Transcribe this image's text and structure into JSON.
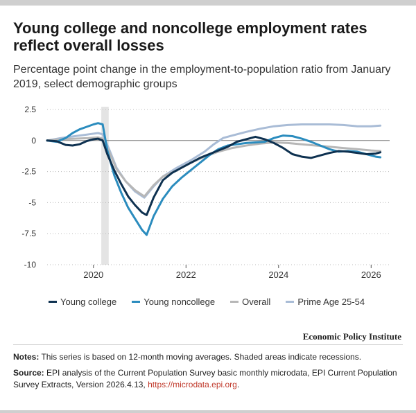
{
  "title": "Young college and noncollege employment rates reflect overall losses",
  "subtitle": "Percentage point change in the employment-to-population ratio from January 2019, select demographic groups",
  "organization": "Economic Policy Institute",
  "notes": {
    "label": "Notes:",
    "text": " This series is based on 12-month moving averages. Shaded areas indicate recessions."
  },
  "source": {
    "label": "Source:",
    "text": " EPI analysis of the Current Population Survey basic monthly microdata, EPI Current Population Survey Extracts, Version 2026.4.13, ",
    "link": "https://microdata.epi.org",
    "suffix": "."
  },
  "chart_data": {
    "type": "line",
    "xlim": [
      2019,
      2026.4
    ],
    "ylim": [
      -10,
      2.5
    ],
    "yticks": [
      "2.5",
      "0",
      "-2.5",
      "-5",
      "-7.5",
      "-10"
    ],
    "xticks": [
      "2020",
      "2022",
      "2024",
      "2026"
    ],
    "grid": "horizontal dotted",
    "legend": "bottom",
    "recession": [
      2020.17,
      2020.33
    ],
    "series": [
      {
        "name": "Young college",
        "color": "#0e3150",
        "points": [
          [
            2019.0,
            0
          ],
          [
            2019.2,
            -0.05
          ],
          [
            2019.4,
            -0.35
          ],
          [
            2019.55,
            -0.4
          ],
          [
            2019.7,
            -0.3
          ],
          [
            2019.85,
            -0.05
          ],
          [
            2020.0,
            0.1
          ],
          [
            2020.1,
            0.15
          ],
          [
            2020.2,
            0.0
          ],
          [
            2020.3,
            -1.1
          ],
          [
            2020.45,
            -2.4
          ],
          [
            2020.6,
            -3.5
          ],
          [
            2020.75,
            -4.5
          ],
          [
            2020.9,
            -5.2
          ],
          [
            2021.05,
            -5.8
          ],
          [
            2021.15,
            -6.0
          ],
          [
            2021.3,
            -4.6
          ],
          [
            2021.5,
            -3.2
          ],
          [
            2021.7,
            -2.6
          ],
          [
            2021.9,
            -2.2
          ],
          [
            2022.1,
            -1.8
          ],
          [
            2022.3,
            -1.4
          ],
          [
            2022.5,
            -1.1
          ],
          [
            2022.7,
            -0.8
          ],
          [
            2022.9,
            -0.5
          ],
          [
            2023.1,
            -0.1
          ],
          [
            2023.3,
            0.1
          ],
          [
            2023.5,
            0.3
          ],
          [
            2023.7,
            0.1
          ],
          [
            2023.9,
            -0.2
          ],
          [
            2024.1,
            -0.6
          ],
          [
            2024.3,
            -1.1
          ],
          [
            2024.5,
            -1.3
          ],
          [
            2024.7,
            -1.4
          ],
          [
            2024.9,
            -1.2
          ],
          [
            2025.1,
            -1.0
          ],
          [
            2025.3,
            -0.85
          ],
          [
            2025.5,
            -0.9
          ],
          [
            2025.7,
            -1.0
          ],
          [
            2025.9,
            -1.1
          ],
          [
            2026.1,
            -1.05
          ],
          [
            2026.2,
            -0.95
          ]
        ]
      },
      {
        "name": "Young noncollege",
        "color": "#2b8cbe",
        "points": [
          [
            2019.0,
            0
          ],
          [
            2019.2,
            -0.1
          ],
          [
            2019.4,
            0.2
          ],
          [
            2019.55,
            0.6
          ],
          [
            2019.7,
            0.9
          ],
          [
            2019.85,
            1.1
          ],
          [
            2020.0,
            1.3
          ],
          [
            2020.1,
            1.4
          ],
          [
            2020.2,
            1.3
          ],
          [
            2020.3,
            -0.8
          ],
          [
            2020.45,
            -2.8
          ],
          [
            2020.6,
            -4.2
          ],
          [
            2020.75,
            -5.4
          ],
          [
            2020.9,
            -6.3
          ],
          [
            2021.05,
            -7.2
          ],
          [
            2021.15,
            -7.6
          ],
          [
            2021.3,
            -6.1
          ],
          [
            2021.5,
            -4.7
          ],
          [
            2021.7,
            -3.7
          ],
          [
            2021.9,
            -3.0
          ],
          [
            2022.1,
            -2.4
          ],
          [
            2022.3,
            -1.8
          ],
          [
            2022.5,
            -1.2
          ],
          [
            2022.7,
            -0.7
          ],
          [
            2022.9,
            -0.4
          ],
          [
            2023.1,
            -0.3
          ],
          [
            2023.3,
            -0.2
          ],
          [
            2023.5,
            -0.15
          ],
          [
            2023.7,
            -0.1
          ],
          [
            2023.9,
            0.2
          ],
          [
            2024.1,
            0.4
          ],
          [
            2024.3,
            0.35
          ],
          [
            2024.5,
            0.15
          ],
          [
            2024.7,
            -0.1
          ],
          [
            2024.9,
            -0.4
          ],
          [
            2025.1,
            -0.7
          ],
          [
            2025.3,
            -0.9
          ],
          [
            2025.5,
            -0.85
          ],
          [
            2025.7,
            -0.9
          ],
          [
            2025.9,
            -1.1
          ],
          [
            2026.1,
            -1.3
          ],
          [
            2026.2,
            -1.35
          ]
        ]
      },
      {
        "name": "Overall",
        "color": "#b7b7b7",
        "points": [
          [
            2019.0,
            0
          ],
          [
            2019.3,
            0.1
          ],
          [
            2019.6,
            0.15
          ],
          [
            2019.9,
            0.2
          ],
          [
            2020.1,
            0.25
          ],
          [
            2020.2,
            0.15
          ],
          [
            2020.35,
            -1.0
          ],
          [
            2020.5,
            -2.3
          ],
          [
            2020.7,
            -3.3
          ],
          [
            2020.9,
            -4.0
          ],
          [
            2021.1,
            -4.5
          ],
          [
            2021.3,
            -3.6
          ],
          [
            2021.5,
            -2.9
          ],
          [
            2021.8,
            -2.4
          ],
          [
            2022.1,
            -1.8
          ],
          [
            2022.4,
            -1.3
          ],
          [
            2022.7,
            -0.9
          ],
          [
            2023.0,
            -0.6
          ],
          [
            2023.3,
            -0.4
          ],
          [
            2023.6,
            -0.25
          ],
          [
            2023.9,
            -0.15
          ],
          [
            2024.2,
            -0.2
          ],
          [
            2024.5,
            -0.3
          ],
          [
            2024.8,
            -0.4
          ],
          [
            2025.1,
            -0.5
          ],
          [
            2025.4,
            -0.6
          ],
          [
            2025.7,
            -0.7
          ],
          [
            2026.0,
            -0.8
          ],
          [
            2026.2,
            -0.85
          ]
        ]
      },
      {
        "name": "Prime Age 25-54",
        "color": "#a9bcd6",
        "points": [
          [
            2019.0,
            0
          ],
          [
            2019.3,
            0.2
          ],
          [
            2019.6,
            0.35
          ],
          [
            2019.9,
            0.5
          ],
          [
            2020.1,
            0.6
          ],
          [
            2020.2,
            0.5
          ],
          [
            2020.35,
            -0.8
          ],
          [
            2020.5,
            -2.2
          ],
          [
            2020.7,
            -3.3
          ],
          [
            2020.9,
            -4.1
          ],
          [
            2021.1,
            -4.6
          ],
          [
            2021.3,
            -3.7
          ],
          [
            2021.5,
            -2.9
          ],
          [
            2021.8,
            -2.2
          ],
          [
            2022.1,
            -1.6
          ],
          [
            2022.4,
            -0.9
          ],
          [
            2022.6,
            -0.3
          ],
          [
            2022.8,
            0.2
          ],
          [
            2023.0,
            0.4
          ],
          [
            2023.3,
            0.7
          ],
          [
            2023.6,
            0.95
          ],
          [
            2023.9,
            1.15
          ],
          [
            2024.2,
            1.25
          ],
          [
            2024.5,
            1.3
          ],
          [
            2024.8,
            1.3
          ],
          [
            2025.1,
            1.3
          ],
          [
            2025.4,
            1.25
          ],
          [
            2025.7,
            1.15
          ],
          [
            2026.0,
            1.15
          ],
          [
            2026.2,
            1.2
          ]
        ]
      }
    ]
  }
}
